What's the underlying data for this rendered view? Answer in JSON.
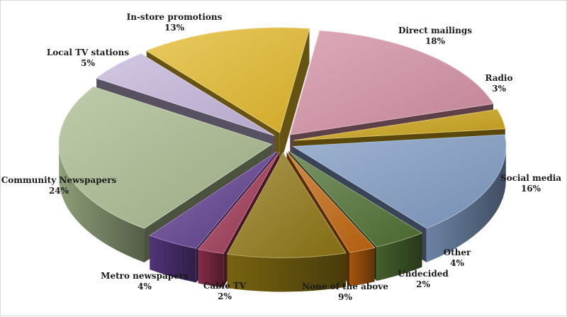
{
  "chart_data": {
    "type": "pie",
    "style": "3d-exploded",
    "title": "",
    "slices": [
      {
        "label": "Direct mailings",
        "value": 18,
        "value_label": "18%",
        "color": "#d18ea1"
      },
      {
        "label": "Radio",
        "value": 3,
        "value_label": "3%",
        "color": "#c9a219"
      },
      {
        "label": "Social media",
        "value": 16,
        "value_label": "16%",
        "color": "#7f9ac1"
      },
      {
        "label": "Other",
        "value": 4,
        "value_label": "4%",
        "color": "#4f7033"
      },
      {
        "label": "Undecided",
        "value": 2,
        "value_label": "2%",
        "color": "#c0650e"
      },
      {
        "label": "None of the above",
        "value": 9,
        "value_label": "9%",
        "color": "#8d7514"
      },
      {
        "label": "Cable TV",
        "value": 2,
        "value_label": "2%",
        "color": "#9c3553"
      },
      {
        "label": "Metro newspapers",
        "value": 4,
        "value_label": "4%",
        "color": "#5e3d8c"
      },
      {
        "label": "Community Newspapers",
        "value": 24,
        "value_label": "24%",
        "color": "#a7b98d"
      },
      {
        "label": "Local TV stations",
        "value": 5,
        "value_label": "5%",
        "color": "#c4b4d9"
      },
      {
        "label": "In-store promotions",
        "value": 13,
        "value_label": "13%",
        "color": "#e1b82c"
      }
    ]
  }
}
